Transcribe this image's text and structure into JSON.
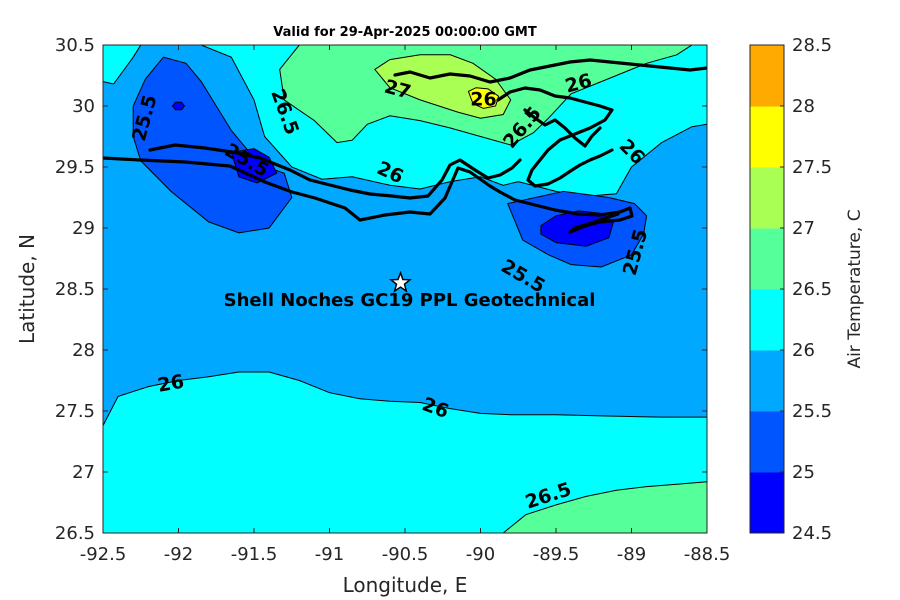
{
  "title": "Valid for 29-Apr-2025 00:00:00 GMT",
  "map": {
    "xlabel": "Longitude, E",
    "ylabel": "Latitude, N",
    "xlim": [
      -92.5,
      -88.5
    ],
    "ylim": [
      26.5,
      30.5
    ],
    "xticks": [
      "-92.5",
      "-92",
      "-91.5",
      "-91",
      "-90.5",
      "-90",
      "-89.5",
      "-89",
      "-88.5"
    ],
    "yticks": [
      "26.5",
      "27",
      "27.5",
      "28",
      "28.5",
      "29",
      "29.5",
      "30",
      "30.5"
    ],
    "base_fill": "#00a8ff",
    "regions": [
      {
        "level": 26.0,
        "color": "#00ffff",
        "points": [
          [
            -92.5,
            27.38
          ],
          [
            -92.4,
            27.62
          ],
          [
            -92.2,
            27.7
          ],
          [
            -92.0,
            27.75
          ],
          [
            -91.8,
            27.78
          ],
          [
            -91.6,
            27.82
          ],
          [
            -91.4,
            27.82
          ],
          [
            -91.2,
            27.75
          ],
          [
            -91.0,
            27.65
          ],
          [
            -90.8,
            27.6
          ],
          [
            -90.6,
            27.58
          ],
          [
            -90.4,
            27.57
          ],
          [
            -90.2,
            27.52
          ],
          [
            -90.0,
            27.48
          ],
          [
            -89.8,
            27.47
          ],
          [
            -89.5,
            27.47
          ],
          [
            -89.2,
            27.46
          ],
          [
            -88.8,
            27.45
          ],
          [
            -88.5,
            27.45
          ],
          [
            -88.5,
            26.5
          ],
          [
            -92.5,
            26.5
          ]
        ]
      },
      {
        "level": 26.5,
        "color": "#55ff9a",
        "points": [
          [
            -89.85,
            26.5
          ],
          [
            -89.7,
            26.65
          ],
          [
            -89.5,
            26.73
          ],
          [
            -89.3,
            26.8
          ],
          [
            -89.1,
            26.85
          ],
          [
            -88.9,
            26.88
          ],
          [
            -88.7,
            26.9
          ],
          [
            -88.5,
            26.92
          ],
          [
            -88.5,
            26.5
          ]
        ]
      },
      {
        "level": 26.0,
        "color": "#00ffff",
        "points": [
          [
            -92.5,
            30.5
          ],
          [
            -92.5,
            30.2
          ],
          [
            -92.43,
            30.18
          ],
          [
            -92.3,
            30.4
          ],
          [
            -92.25,
            30.5
          ]
        ]
      },
      {
        "level": 26.0,
        "color": "#00ffff",
        "points": [
          [
            -91.85,
            30.5
          ],
          [
            -91.65,
            30.4
          ],
          [
            -91.5,
            30.05
          ],
          [
            -91.43,
            29.75
          ],
          [
            -91.25,
            29.5
          ],
          [
            -91.05,
            29.4
          ],
          [
            -90.85,
            29.42
          ],
          [
            -90.6,
            29.35
          ],
          [
            -90.4,
            29.32
          ],
          [
            -90.2,
            29.38
          ],
          [
            -90.0,
            29.42
          ],
          [
            -89.85,
            29.35
          ],
          [
            -89.75,
            29.38
          ],
          [
            -89.5,
            29.3
          ],
          [
            -89.3,
            29.26
          ],
          [
            -89.1,
            29.28
          ],
          [
            -89.0,
            29.5
          ],
          [
            -88.8,
            29.7
          ],
          [
            -88.6,
            29.83
          ],
          [
            -88.5,
            29.85
          ],
          [
            -88.5,
            30.5
          ]
        ]
      },
      {
        "level": 26.5,
        "color": "#55ff9a",
        "points": [
          [
            -91.2,
            30.5
          ],
          [
            -91.33,
            30.3
          ],
          [
            -91.3,
            30.05
          ],
          [
            -91.1,
            29.88
          ],
          [
            -90.95,
            29.7
          ],
          [
            -90.85,
            29.72
          ],
          [
            -90.75,
            29.85
          ],
          [
            -90.6,
            29.92
          ],
          [
            -90.4,
            29.88
          ],
          [
            -90.2,
            29.82
          ],
          [
            -90.0,
            29.75
          ],
          [
            -89.8,
            29.68
          ],
          [
            -89.65,
            29.78
          ],
          [
            -89.55,
            29.9
          ],
          [
            -89.4,
            30.1
          ],
          [
            -89.2,
            30.2
          ],
          [
            -89.0,
            30.3
          ],
          [
            -88.9,
            30.35
          ],
          [
            -88.7,
            30.42
          ],
          [
            -88.6,
            30.5
          ]
        ]
      },
      {
        "level": 27.0,
        "color": "#aaff55",
        "points": [
          [
            -90.7,
            30.3
          ],
          [
            -90.6,
            30.38
          ],
          [
            -90.4,
            30.42
          ],
          [
            -90.2,
            30.42
          ],
          [
            -90.05,
            30.35
          ],
          [
            -89.9,
            30.22
          ],
          [
            -89.8,
            30.05
          ],
          [
            -89.85,
            29.93
          ],
          [
            -90.0,
            29.9
          ],
          [
            -90.15,
            29.95
          ],
          [
            -90.4,
            30.05
          ],
          [
            -90.6,
            30.15
          ]
        ]
      },
      {
        "level": 27.5,
        "color": "#ffff00",
        "points": [
          [
            -90.08,
            30.12
          ],
          [
            -90.05,
            30.02
          ],
          [
            -89.98,
            29.98
          ],
          [
            -89.9,
            30.0
          ],
          [
            -89.88,
            30.08
          ],
          [
            -89.95,
            30.14
          ],
          [
            -90.03,
            30.15
          ]
        ]
      },
      {
        "level": 25.0,
        "color": "#0055ff",
        "points": [
          [
            -92.22,
            30.22
          ],
          [
            -92.3,
            30.0
          ],
          [
            -92.3,
            29.75
          ],
          [
            -92.25,
            29.55
          ],
          [
            -92.05,
            29.3
          ],
          [
            -91.8,
            29.05
          ],
          [
            -91.6,
            28.96
          ],
          [
            -91.4,
            29.0
          ],
          [
            -91.25,
            29.25
          ],
          [
            -91.3,
            29.45
          ],
          [
            -91.42,
            29.5
          ],
          [
            -91.55,
            29.65
          ],
          [
            -91.65,
            29.8
          ],
          [
            -91.75,
            30.0
          ],
          [
            -91.85,
            30.2
          ],
          [
            -91.95,
            30.35
          ],
          [
            -92.1,
            30.4
          ]
        ]
      },
      {
        "level": 24.5,
        "color": "#0000ff",
        "points": [
          [
            -92.04,
            30.0
          ],
          [
            -92.02,
            29.97
          ],
          [
            -91.98,
            29.97
          ],
          [
            -91.96,
            30.0
          ],
          [
            -91.98,
            30.03
          ],
          [
            -92.02,
            30.03
          ]
        ]
      },
      {
        "level": 24.5,
        "color": "#0000ff",
        "points": [
          [
            -91.65,
            29.62
          ],
          [
            -91.6,
            29.42
          ],
          [
            -91.48,
            29.37
          ],
          [
            -91.35,
            29.45
          ],
          [
            -91.4,
            29.58
          ],
          [
            -91.5,
            29.65
          ]
        ]
      },
      {
        "level": 25.0,
        "color": "#0055ff",
        "points": [
          [
            -89.82,
            29.2
          ],
          [
            -89.72,
            28.9
          ],
          [
            -89.55,
            28.78
          ],
          [
            -89.4,
            28.7
          ],
          [
            -89.2,
            28.68
          ],
          [
            -89.0,
            28.78
          ],
          [
            -88.92,
            28.95
          ],
          [
            -88.9,
            29.1
          ],
          [
            -88.98,
            29.2
          ],
          [
            -89.15,
            29.25
          ],
          [
            -89.45,
            29.3
          ]
        ]
      },
      {
        "level": 24.5,
        "color": "#0000ff",
        "points": [
          [
            -89.6,
            28.95
          ],
          [
            -89.5,
            28.88
          ],
          [
            -89.3,
            28.85
          ],
          [
            -89.15,
            28.92
          ],
          [
            -89.12,
            29.05
          ],
          [
            -89.2,
            29.12
          ],
          [
            -89.35,
            29.14
          ],
          [
            -89.5,
            29.1
          ],
          [
            -89.6,
            29.02
          ]
        ]
      }
    ],
    "contour_labels": [
      {
        "text": "25.5",
        "lon": -92.22,
        "lat": 29.9,
        "angle": -75
      },
      {
        "text": "26.5",
        "lon": -91.3,
        "lat": 29.95,
        "angle": 70
      },
      {
        "text": "27",
        "lon": -90.55,
        "lat": 30.13,
        "angle": 15
      },
      {
        "text": "26",
        "lon": -89.98,
        "lat": 30.05,
        "angle": 0
      },
      {
        "text": "26.5",
        "lon": -89.72,
        "lat": 29.82,
        "angle": -50
      },
      {
        "text": "26",
        "lon": -89.35,
        "lat": 30.18,
        "angle": -15
      },
      {
        "text": "26",
        "lon": -89.0,
        "lat": 29.62,
        "angle": 45
      },
      {
        "text": "25.5",
        "lon": -91.55,
        "lat": 29.55,
        "angle": 30
      },
      {
        "text": "26",
        "lon": -90.6,
        "lat": 29.45,
        "angle": 25
      },
      {
        "text": "25.5",
        "lon": -89.72,
        "lat": 28.6,
        "angle": 30
      },
      {
        "text": "25.5",
        "lon": -88.97,
        "lat": 28.8,
        "angle": -75
      },
      {
        "text": "26",
        "lon": -92.05,
        "lat": 27.72,
        "angle": -10
      },
      {
        "text": "26",
        "lon": -90.3,
        "lat": 27.52,
        "angle": 20
      },
      {
        "text": "26.5",
        "lon": -89.55,
        "lat": 26.8,
        "angle": -18
      }
    ],
    "annotation": {
      "text": "Shell Noches   GC19 PPL  Geotechnical",
      "lon": -90.47,
      "lat": 28.41
    },
    "marker": {
      "lon": -90.53,
      "lat": 28.55,
      "symbol": "star"
    }
  },
  "colorbar": {
    "title": "Air Temperature, C",
    "ticks": [
      "24.5",
      "25",
      "25.5",
      "26",
      "26.5",
      "27",
      "27.5",
      "28",
      "28.5"
    ],
    "colors": [
      "#0000ff",
      "#0055ff",
      "#00a8ff",
      "#00ffff",
      "#55ff9a",
      "#aaff55",
      "#ffff00",
      "#ffaa00",
      "#ff5500"
    ]
  }
}
